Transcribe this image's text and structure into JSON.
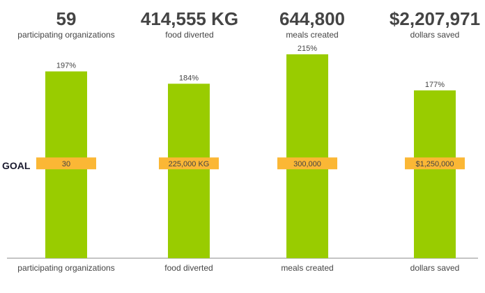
{
  "stats": [
    {
      "value": "59",
      "label": "participating organizations"
    },
    {
      "value": "414,555 KG",
      "label": "food diverted"
    },
    {
      "value": "644,800",
      "label": "meals created"
    },
    {
      "value": "$2,207,971",
      "label": "dollars saved"
    }
  ],
  "goal_marker_label": "GOAL",
  "colors": {
    "bar": "#99cc00",
    "goal_band": "#fbb735",
    "axis": "#888888",
    "text": "#444444"
  },
  "chart_data": {
    "type": "bar",
    "categories": [
      "participating organizations",
      "food diverted",
      "meals created",
      "dollars saved"
    ],
    "values": [
      197,
      184,
      215,
      177
    ],
    "value_labels": [
      "197%",
      "184%",
      "215%",
      "177%"
    ],
    "goal_percent": 100,
    "goal_labels": [
      "30",
      "225,000 KG",
      "300,000",
      "$1,250,000"
    ],
    "ylim": [
      0,
      240
    ],
    "xlabel": "",
    "ylabel": "",
    "title": "",
    "grid": false,
    "legend": "none"
  }
}
